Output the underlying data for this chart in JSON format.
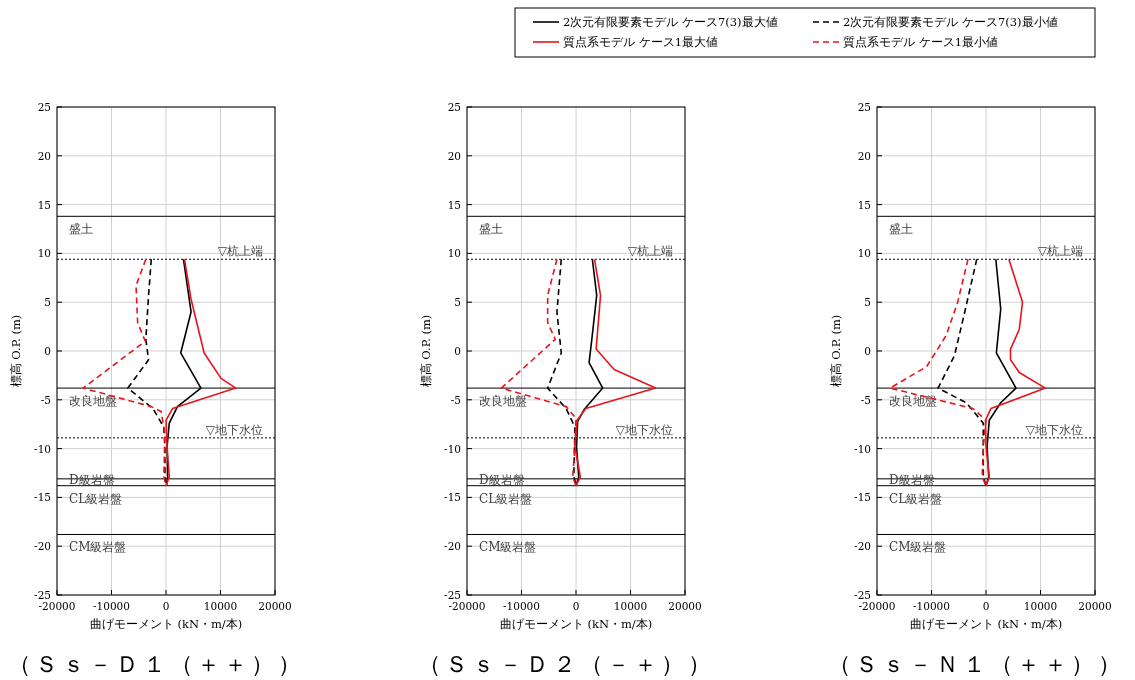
{
  "chart_data": [
    {
      "type": "line",
      "title": "（Ｓｓ－Ｄ１（＋＋））",
      "xlabel": "曲げモーメント (kN・m/本)",
      "ylabel": "標高 O.P. (m)",
      "xlim": [
        -20000,
        20000
      ],
      "ylim": [
        -25,
        25
      ],
      "xticks": [
        -20000,
        -10000,
        0,
        10000,
        20000
      ],
      "yticks": [
        -25,
        -20,
        -15,
        -10,
        -5,
        0,
        5,
        10,
        15,
        20,
        25
      ],
      "grid": true,
      "series": [
        {
          "color": "#000000",
          "line_style": "solid",
          "x": [
            3200,
            4600,
            2700,
            6400,
            2100,
            600,
            200,
            300,
            100
          ],
          "values": [
            9.4,
            4.0,
            -0.2,
            -3.8,
            -5.7,
            -7.4,
            -9.8,
            -12.9,
            -13.8
          ]
        },
        {
          "color": "#000000",
          "line_style": "dashed",
          "x": [
            -2700,
            -3200,
            -3700,
            -3200,
            -7000,
            -2400,
            -400,
            -200,
            -200,
            100
          ],
          "values": [
            9.4,
            5.7,
            1.2,
            -0.9,
            -3.8,
            -5.9,
            -7.8,
            -9.8,
            -12.9,
            -13.8
          ]
        },
        {
          "color": "#e8141b",
          "line_style": "solid",
          "x": [
            3400,
            4600,
            7000,
            10100,
            12800,
            1200,
            0,
            200,
            600,
            0
          ],
          "values": [
            9.4,
            5.3,
            -0.2,
            -2.8,
            -3.8,
            -5.9,
            -7.1,
            -9.8,
            -12.9,
            -13.8
          ]
        },
        {
          "color": "#e8141b",
          "line_style": "dashed",
          "x": [
            -3700,
            -5500,
            -5200,
            -3800,
            -15200,
            -2700,
            -900,
            -200,
            -400,
            0
          ],
          "values": [
            9.4,
            6.7,
            2.9,
            1.0,
            -3.8,
            -5.7,
            -6.2,
            -8.4,
            -12.9,
            -13.8
          ]
        }
      ],
      "ref_lines": [
        {
          "axis": "y",
          "value": 13.8,
          "line_style": "solid"
        },
        {
          "axis": "y",
          "value": 9.4,
          "label": "▽杭上端",
          "line_style": "dotted"
        },
        {
          "axis": "y",
          "value": -3.8,
          "line_style": "solid"
        },
        {
          "axis": "y",
          "value": -8.9,
          "label": "▽地下水位",
          "line_style": "dotted"
        },
        {
          "axis": "y",
          "value": -13.1,
          "line_style": "solid"
        },
        {
          "axis": "y",
          "value": -13.8,
          "line_style": "solid"
        },
        {
          "axis": "y",
          "value": -18.8,
          "line_style": "solid"
        }
      ],
      "annotations": [
        "盛土",
        "改良地盤",
        "D級岩盤",
        "CL級岩盤",
        "CM級岩盤"
      ]
    },
    {
      "type": "line",
      "title": "（Ｓｓ－Ｄ２（－＋））",
      "xlabel": "曲げモーメント (kN・m/本)",
      "ylabel": "標高 O.P. (m)",
      "xlim": [
        -20000,
        20000
      ],
      "ylim": [
        -25,
        25
      ],
      "xticks": [
        -20000,
        -10000,
        0,
        10000,
        20000
      ],
      "yticks": [
        -25,
        -20,
        -15,
        -10,
        -5,
        0,
        5,
        10,
        15,
        20,
        25
      ],
      "grid": true,
      "series": [
        {
          "color": "#000000",
          "line_style": "solid",
          "x": [
            3000,
            3800,
            2900,
            2400,
            4900,
            1500,
            300,
            100,
            500,
            0
          ],
          "values": [
            9.4,
            5.7,
            1.2,
            -1.2,
            -3.8,
            -6.0,
            -7.2,
            -9.8,
            -12.9,
            -13.8
          ]
        },
        {
          "color": "#000000",
          "line_style": "dashed",
          "x": [
            -2700,
            -3500,
            -2700,
            -5200,
            -1800,
            -200,
            -400,
            100
          ],
          "values": [
            9.4,
            4.0,
            -0.2,
            -3.8,
            -5.9,
            -7.8,
            -12.9,
            -13.8
          ]
        },
        {
          "color": "#e8141b",
          "line_style": "solid",
          "x": [
            3400,
            4500,
            3700,
            7000,
            14600,
            1800,
            200,
            -200,
            800,
            0
          ],
          "values": [
            9.4,
            5.7,
            0.2,
            -1.9,
            -3.8,
            -5.9,
            -7.1,
            -9.8,
            -12.9,
            -13.8
          ]
        },
        {
          "color": "#e8141b",
          "line_style": "dashed",
          "x": [
            -3500,
            -5200,
            -5200,
            -3800,
            -13700,
            -1800,
            0,
            -200,
            -600,
            0
          ],
          "values": [
            9.4,
            5.7,
            2.9,
            1.2,
            -3.8,
            -5.7,
            -6.9,
            -9.8,
            -12.9,
            -13.8
          ]
        }
      ],
      "ref_lines": [
        {
          "axis": "y",
          "value": 13.8,
          "line_style": "solid"
        },
        {
          "axis": "y",
          "value": 9.4,
          "label": "▽杭上端",
          "line_style": "dotted"
        },
        {
          "axis": "y",
          "value": -3.8,
          "line_style": "solid"
        },
        {
          "axis": "y",
          "value": -8.9,
          "label": "▽地下水位",
          "line_style": "dotted"
        },
        {
          "axis": "y",
          "value": -13.1,
          "line_style": "solid"
        },
        {
          "axis": "y",
          "value": -13.8,
          "line_style": "solid"
        },
        {
          "axis": "y",
          "value": -18.8,
          "line_style": "solid"
        }
      ],
      "annotations": [
        "盛土",
        "改良地盤",
        "D級岩盤",
        "CL級岩盤",
        "CM級岩盤"
      ]
    },
    {
      "type": "line",
      "title": "（Ｓｓ－Ｎ１（＋＋））",
      "xlabel": "曲げモーメント (kN・m/本)",
      "ylabel": "標高 O.P. (m)",
      "xlim": [
        -20000,
        20000
      ],
      "ylim": [
        -25,
        25
      ],
      "xticks": [
        -20000,
        -10000,
        0,
        10000,
        20000
      ],
      "yticks": [
        -25,
        -20,
        -15,
        -10,
        -5,
        0,
        5,
        10,
        15,
        20,
        25
      ],
      "grid": true,
      "legend": "top",
      "series": [
        {
          "name": "2次元有限要素モデル ケース7(3)最大値",
          "color": "#000000",
          "line_style": "solid",
          "x": [
            1800,
            2700,
            1900,
            5500,
            2700,
            600,
            200,
            500,
            0
          ],
          "values": [
            9.4,
            4.3,
            -0.2,
            -3.8,
            -5.3,
            -7.1,
            -9.8,
            -12.9,
            -13.8
          ]
        },
        {
          "name": "2次元有限要素モデル ケース7(3)最小値",
          "color": "#000000",
          "line_style": "dashed",
          "x": [
            -1700,
            -3900,
            -5800,
            -8800,
            -3600,
            -500,
            -500,
            0
          ],
          "values": [
            9.4,
            4.0,
            -0.5,
            -3.8,
            -5.3,
            -7.4,
            -12.9,
            -13.8
          ]
        },
        {
          "name": "質点系モデル ケース1最大値",
          "color": "#e8141b",
          "line_style": "solid",
          "x": [
            4200,
            6700,
            6100,
            4500,
            4500,
            6100,
            10900,
            900,
            -100,
            0,
            600,
            0
          ],
          "values": [
            9.4,
            5.0,
            2.2,
            0.2,
            -0.9,
            -2.2,
            -3.8,
            -5.9,
            -7.1,
            -9.8,
            -12.9,
            -13.8
          ]
        },
        {
          "name": "質点系モデル ケース1最小値",
          "color": "#e8141b",
          "line_style": "dashed",
          "x": [
            -3300,
            -5200,
            -7300,
            -10900,
            -17600,
            -2400,
            0,
            -500,
            -700,
            0
          ],
          "values": [
            9.4,
            5.0,
            1.6,
            -1.6,
            -3.8,
            -5.9,
            -7.1,
            -9.8,
            -12.9,
            -13.8
          ]
        }
      ],
      "ref_lines": [
        {
          "axis": "y",
          "value": 13.8,
          "line_style": "solid"
        },
        {
          "axis": "y",
          "value": 9.4,
          "label": "▽杭上端",
          "line_style": "dotted"
        },
        {
          "axis": "y",
          "value": -3.8,
          "line_style": "solid"
        },
        {
          "axis": "y",
          "value": -8.9,
          "label": "▽地下水位",
          "line_style": "dotted"
        },
        {
          "axis": "y",
          "value": -13.1,
          "line_style": "solid"
        },
        {
          "axis": "y",
          "value": -13.8,
          "line_style": "solid"
        },
        {
          "axis": "y",
          "value": -18.8,
          "line_style": "solid"
        }
      ],
      "annotations": [
        "盛土",
        "改良地盤",
        "D級岩盤",
        "CL級岩盤",
        "CM級岩盤"
      ]
    }
  ]
}
